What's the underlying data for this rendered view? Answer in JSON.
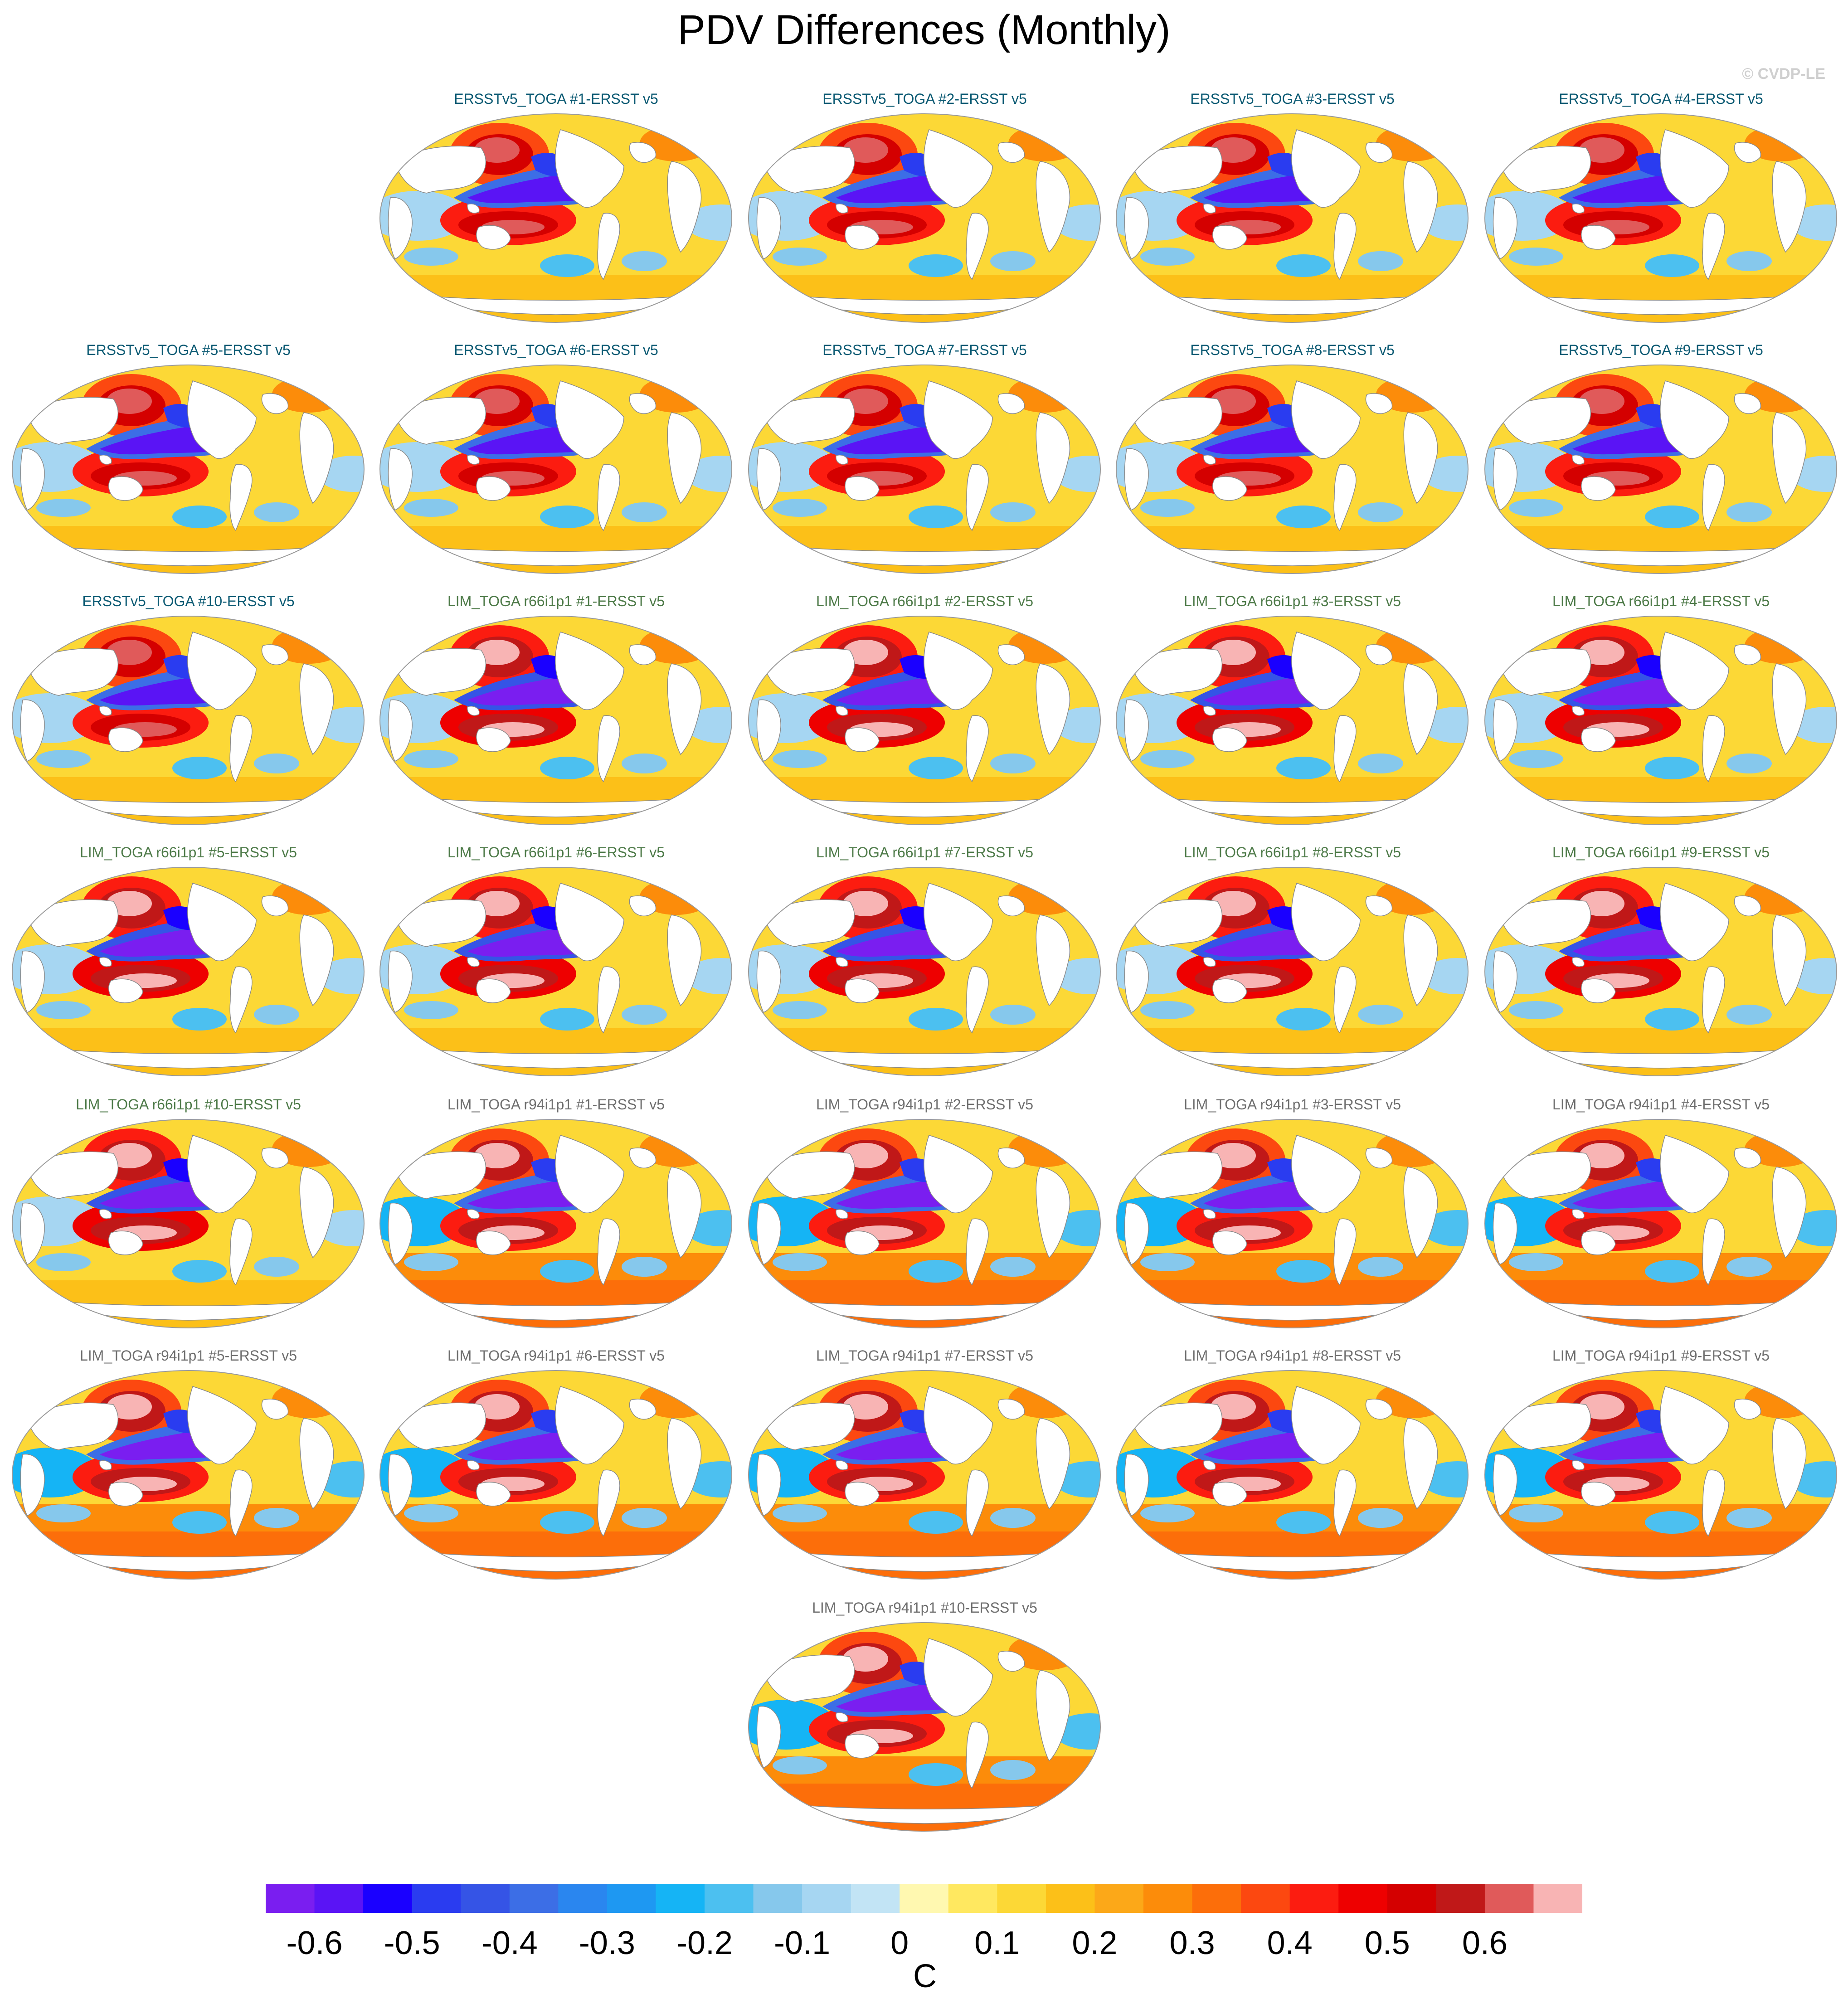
{
  "title": "PDV Differences (Monthly)",
  "copyright": "© CVDP-LE",
  "panels": [
    {
      "label": "ERSSTv5_TOGA #1-ERSST v5",
      "group": "ersst"
    },
    {
      "label": "ERSSTv5_TOGA #2-ERSST v5",
      "group": "ersst"
    },
    {
      "label": "ERSSTv5_TOGA #3-ERSST v5",
      "group": "ersst"
    },
    {
      "label": "ERSSTv5_TOGA #4-ERSST v5",
      "group": "ersst"
    },
    {
      "label": "ERSSTv5_TOGA #5-ERSST v5",
      "group": "ersst"
    },
    {
      "label": "ERSSTv5_TOGA #6-ERSST v5",
      "group": "ersst"
    },
    {
      "label": "ERSSTv5_TOGA #7-ERSST v5",
      "group": "ersst"
    },
    {
      "label": "ERSSTv5_TOGA #8-ERSST v5",
      "group": "ersst"
    },
    {
      "label": "ERSSTv5_TOGA #9-ERSST v5",
      "group": "ersst"
    },
    {
      "label": "ERSSTv5_TOGA #10-ERSST v5",
      "group": "ersst"
    },
    {
      "label": "LIM_TOGA r66i1p1 #1-ERSST v5",
      "group": "r66"
    },
    {
      "label": "LIM_TOGA r66i1p1 #2-ERSST v5",
      "group": "r66"
    },
    {
      "label": "LIM_TOGA r66i1p1 #3-ERSST v5",
      "group": "r66"
    },
    {
      "label": "LIM_TOGA r66i1p1 #4-ERSST v5",
      "group": "r66"
    },
    {
      "label": "LIM_TOGA r66i1p1 #5-ERSST v5",
      "group": "r66"
    },
    {
      "label": "LIM_TOGA r66i1p1 #6-ERSST v5",
      "group": "r66"
    },
    {
      "label": "LIM_TOGA r66i1p1 #7-ERSST v5",
      "group": "r66"
    },
    {
      "label": "LIM_TOGA r66i1p1 #8-ERSST v5",
      "group": "r66"
    },
    {
      "label": "LIM_TOGA r66i1p1 #9-ERSST v5",
      "group": "r66"
    },
    {
      "label": "LIM_TOGA r66i1p1 #10-ERSST v5",
      "group": "r66"
    },
    {
      "label": "LIM_TOGA r94i1p1 #1-ERSST v5",
      "group": "r94"
    },
    {
      "label": "LIM_TOGA r94i1p1 #2-ERSST v5",
      "group": "r94"
    },
    {
      "label": "LIM_TOGA r94i1p1 #3-ERSST v5",
      "group": "r94"
    },
    {
      "label": "LIM_TOGA r94i1p1 #4-ERSST v5",
      "group": "r94"
    },
    {
      "label": "LIM_TOGA r94i1p1 #5-ERSST v5",
      "group": "r94"
    },
    {
      "label": "LIM_TOGA r94i1p1 #6-ERSST v5",
      "group": "r94"
    },
    {
      "label": "LIM_TOGA r94i1p1 #7-ERSST v5",
      "group": "r94"
    },
    {
      "label": "LIM_TOGA r94i1p1 #8-ERSST v5",
      "group": "r94"
    },
    {
      "label": "LIM_TOGA r94i1p1 #9-ERSST v5",
      "group": "r94"
    },
    {
      "label": "LIM_TOGA r94i1p1 #10-ERSST v5",
      "group": "r94"
    }
  ],
  "colorbar": {
    "unit": "C",
    "ticks": [
      "-0.6",
      "-0.5",
      "-0.4",
      "-0.3",
      "-0.2",
      "-0.1",
      "0",
      "0.1",
      "0.2",
      "0.3",
      "0.4",
      "0.5",
      "0.6"
    ],
    "colors": [
      "#7a1ef0",
      "#5a14f5",
      "#1a00ff",
      "#2a3cf0",
      "#3554e6",
      "#3c6ee6",
      "#2a86ef",
      "#1e98f2",
      "#15b4f5",
      "#4cc0f0",
      "#86c8ec",
      "#a6d6f2",
      "#c2e4f5",
      "#fff8b0",
      "#ffe860",
      "#fcd836",
      "#fcc018",
      "#fca818",
      "#fc8c0a",
      "#fc6e0a",
      "#fc4810",
      "#fc1c10",
      "#ee0000",
      "#d40000",
      "#c01818",
      "#e05a5a",
      "#f8b4b4"
    ]
  },
  "colors": {
    "land": "#ffffff",
    "coast": "#8a8a8a",
    "outline": "#9a9a9a"
  }
}
